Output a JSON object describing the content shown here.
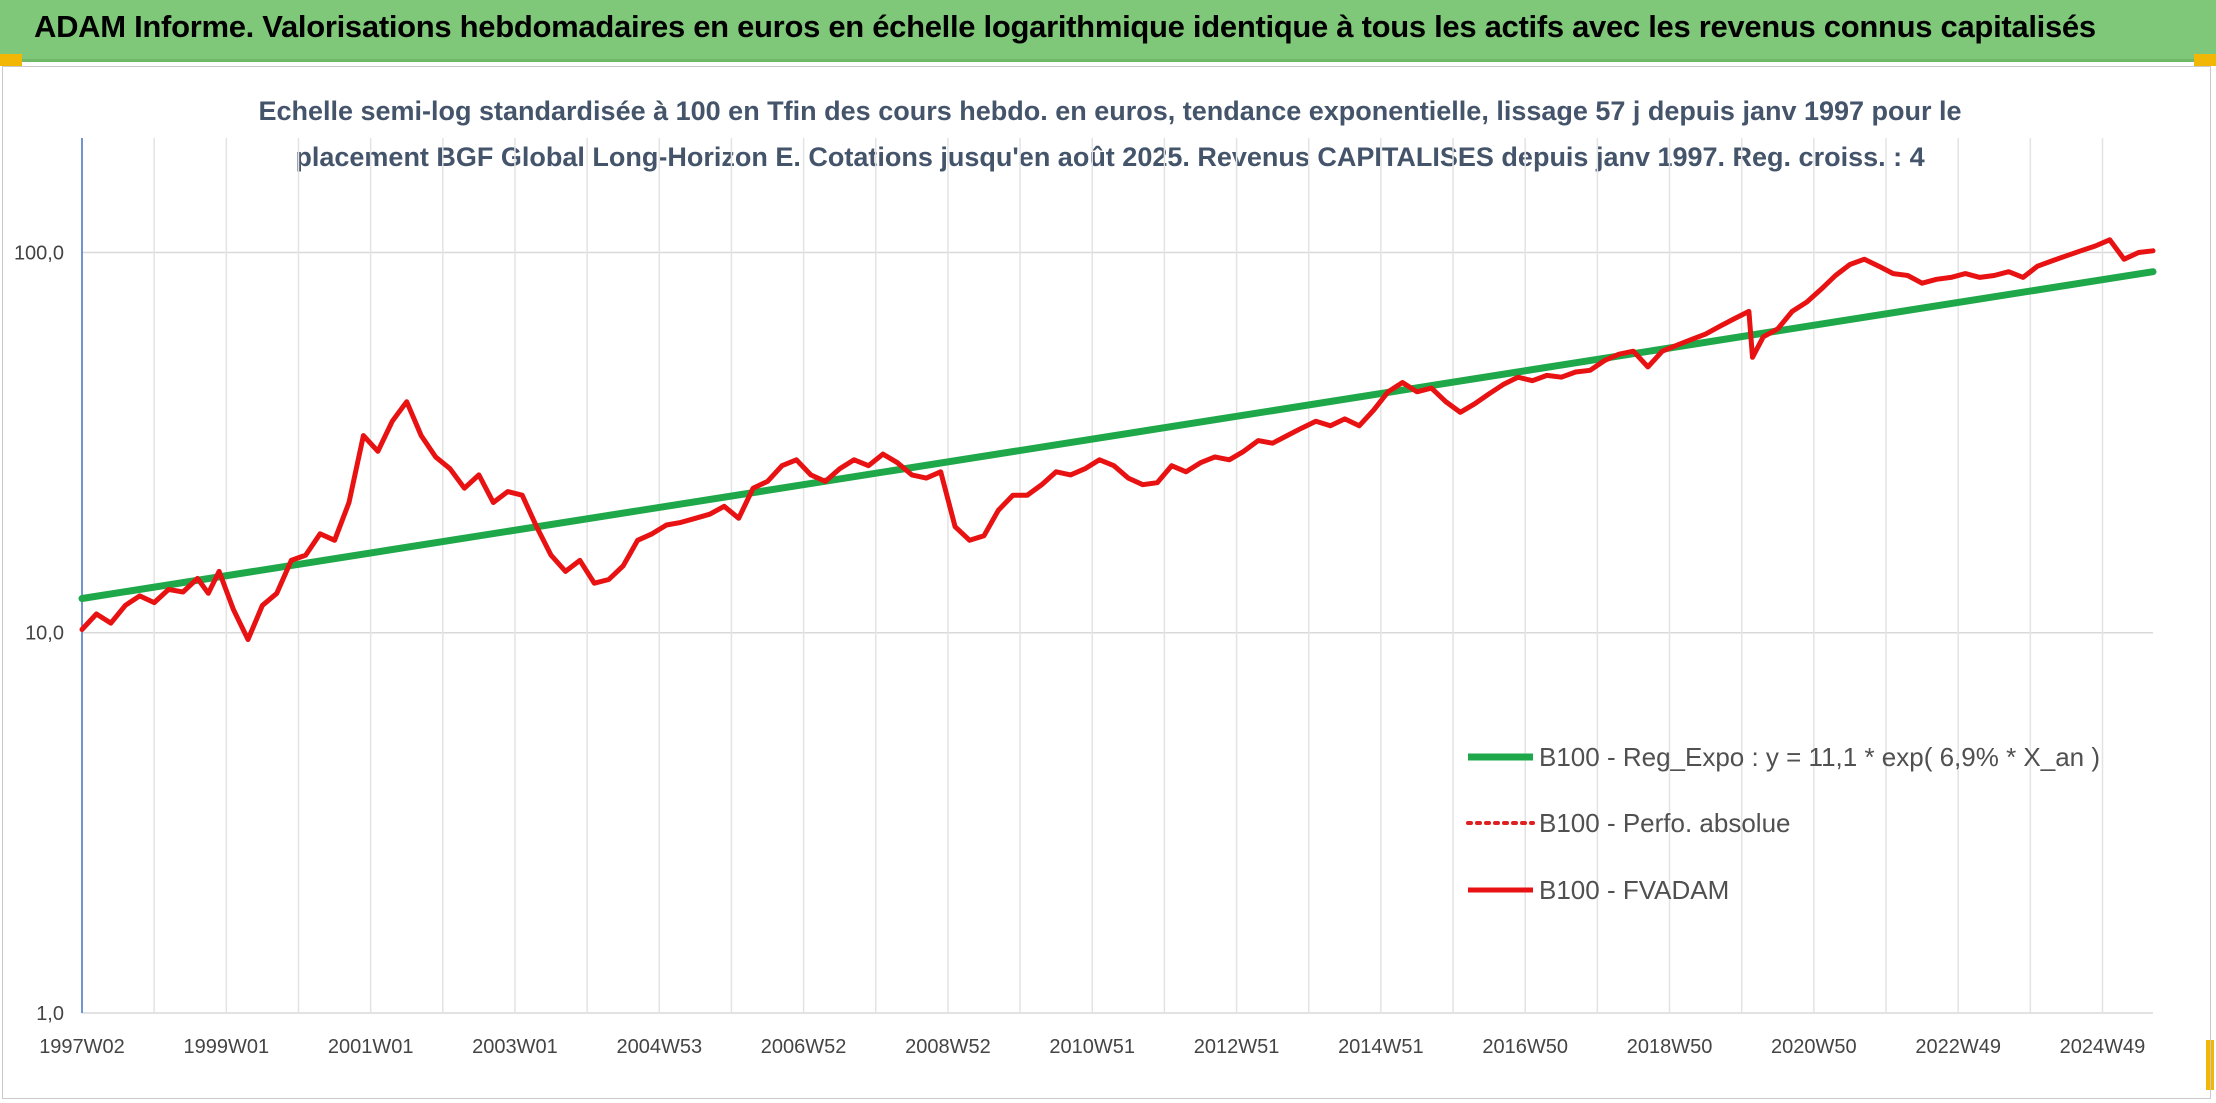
{
  "header": {
    "title": "ADAM Informe. Valorisations hebdomadaires en euros en échelle logarithmique identique à tous les actifs avec les revenus connus capitalisés"
  },
  "chart_data": {
    "type": "line",
    "title_line1": "Echelle semi-log standardisée à 100 en Tfin des cours hebdo. en euros, tendance exponentielle, lissage 57 j depuis janv 1997 pour le",
    "title_line2": "placement BGF Global Long-Horizon E. Cotations jusqu'en août 2025. Revenus CAPITALISES depuis janv 1997. Reg. croiss. : 4",
    "y_scale": "log",
    "ylim": [
      1,
      200
    ],
    "y_ticks": [
      "1,0",
      "10,0",
      "100,0"
    ],
    "xlim": [
      1997.0,
      2025.7
    ],
    "x_ticks": [
      {
        "label": "1997W02",
        "x": 1997.0
      },
      {
        "label": "1999W01",
        "x": 1999.0
      },
      {
        "label": "2001W01",
        "x": 2001.0
      },
      {
        "label": "2003W01",
        "x": 2003.0
      },
      {
        "label": "2004W53",
        "x": 2005.0
      },
      {
        "label": "2006W52",
        "x": 2007.0
      },
      {
        "label": "2008W52",
        "x": 2009.0
      },
      {
        "label": "2010W51",
        "x": 2011.0
      },
      {
        "label": "2012W51",
        "x": 2013.0
      },
      {
        "label": "2014W51",
        "x": 2015.0
      },
      {
        "label": "2016W50",
        "x": 2017.0
      },
      {
        "label": "2018W50",
        "x": 2019.0
      },
      {
        "label": "2020W50",
        "x": 2021.0
      },
      {
        "label": "2022W49",
        "x": 2023.0
      },
      {
        "label": "2024W49",
        "x": 2025.0
      }
    ],
    "grid": "vertical-and-horizontal",
    "legend_position": "center-right",
    "series": [
      {
        "name": "B100 - Reg_Expo : y = 11,1 * exp( 6,9% *  X_an )",
        "color": "#1fa84a",
        "style": "solid",
        "x": [
          1997.0,
          2025.7
        ],
        "values": [
          12.3,
          89
        ]
      },
      {
        "name": "B100 - Perfo. absolue",
        "color": "#e02020",
        "style": "dotted",
        "x": [],
        "values": []
      },
      {
        "name": "B100 - FVADAM",
        "color": "#e81212",
        "style": "solid",
        "x": [
          1997.0,
          1997.2,
          1997.4,
          1997.6,
          1997.8,
          1998.0,
          1998.2,
          1998.4,
          1998.6,
          1998.75,
          1998.9,
          1999.1,
          1999.3,
          1999.5,
          1999.7,
          1999.9,
          2000.1,
          2000.3,
          2000.5,
          2000.7,
          2000.9,
          2001.1,
          2001.3,
          2001.5,
          2001.7,
          2001.9,
          2002.1,
          2002.3,
          2002.5,
          2002.7,
          2002.9,
          2003.1,
          2003.3,
          2003.5,
          2003.7,
          2003.9,
          2004.1,
          2004.3,
          2004.5,
          2004.7,
          2004.9,
          2005.1,
          2005.3,
          2005.5,
          2005.7,
          2005.9,
          2006.1,
          2006.3,
          2006.5,
          2006.7,
          2006.9,
          2007.1,
          2007.3,
          2007.5,
          2007.7,
          2007.9,
          2008.1,
          2008.3,
          2008.5,
          2008.7,
          2008.9,
          2009.1,
          2009.3,
          2009.5,
          2009.7,
          2009.9,
          2010.1,
          2010.3,
          2010.5,
          2010.7,
          2010.9,
          2011.1,
          2011.3,
          2011.5,
          2011.7,
          2011.9,
          2012.1,
          2012.3,
          2012.5,
          2012.7,
          2012.9,
          2013.1,
          2013.3,
          2013.5,
          2013.7,
          2013.9,
          2014.1,
          2014.3,
          2014.5,
          2014.7,
          2014.9,
          2015.1,
          2015.3,
          2015.5,
          2015.7,
          2015.9,
          2016.1,
          2016.3,
          2016.5,
          2016.7,
          2016.9,
          2017.1,
          2017.3,
          2017.5,
          2017.7,
          2017.9,
          2018.1,
          2018.3,
          2018.5,
          2018.7,
          2018.9,
          2019.1,
          2019.3,
          2019.5,
          2019.7,
          2019.9,
          2020.1,
          2020.15,
          2020.3,
          2020.5,
          2020.7,
          2020.9,
          2021.1,
          2021.3,
          2021.5,
          2021.7,
          2021.9,
          2022.1,
          2022.3,
          2022.5,
          2022.7,
          2022.9,
          2023.1,
          2023.3,
          2023.5,
          2023.7,
          2023.9,
          2024.1,
          2024.3,
          2024.5,
          2024.7,
          2024.9,
          2025.1,
          2025.3,
          2025.5,
          2025.7
        ],
        "values": [
          10.2,
          11.2,
          10.6,
          11.8,
          12.5,
          12.0,
          13.0,
          12.8,
          13.9,
          12.7,
          14.5,
          11.5,
          9.6,
          11.8,
          12.7,
          15.5,
          16.0,
          18.2,
          17.5,
          22.0,
          33.0,
          30.0,
          36.0,
          40.5,
          33.0,
          29.0,
          27.0,
          24.0,
          26.0,
          22.0,
          23.5,
          23.0,
          19.0,
          16.0,
          14.5,
          15.5,
          13.5,
          13.8,
          15.0,
          17.5,
          18.2,
          19.2,
          19.5,
          20.0,
          20.5,
          21.5,
          20.0,
          24.0,
          25.0,
          27.5,
          28.5,
          26.0,
          25.0,
          27.0,
          28.5,
          27.5,
          29.5,
          28.0,
          26.0,
          25.5,
          26.5,
          19.0,
          17.5,
          18.0,
          21.0,
          23.0,
          23.0,
          24.5,
          26.5,
          26.0,
          27.0,
          28.5,
          27.5,
          25.5,
          24.5,
          24.8,
          27.5,
          26.5,
          28.0,
          29.0,
          28.5,
          30.0,
          32.0,
          31.5,
          33.0,
          34.5,
          36.0,
          35.0,
          36.5,
          35.0,
          38.5,
          43.0,
          45.5,
          43.0,
          44.0,
          40.5,
          38.0,
          40.0,
          42.5,
          45.0,
          47.0,
          46.0,
          47.5,
          47.0,
          48.5,
          49.0,
          52.0,
          54.0,
          55.0,
          50.0,
          55.0,
          57.0,
          59.0,
          61.0,
          64.0,
          67.0,
          70.0,
          53.0,
          60.0,
          63.0,
          70.0,
          74.0,
          80.0,
          87.0,
          93.0,
          96.0,
          92.0,
          88.0,
          87.0,
          83.0,
          85.0,
          86.0,
          88.0,
          86.0,
          87.0,
          89.0,
          86.0,
          92.0,
          95.0,
          98.0,
          101.0,
          104.0,
          108.0,
          96.0,
          100.0,
          101.0
        ]
      }
    ]
  }
}
